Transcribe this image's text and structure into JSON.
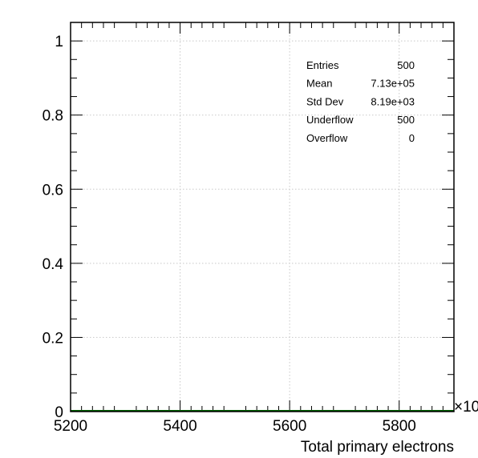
{
  "chart_data": {
    "type": "histogram",
    "xlabel": "Total primary electrons",
    "ylabel": "",
    "x_ticks": [
      "5200",
      "5400",
      "5600",
      "5800"
    ],
    "x_exponent_label": "×10",
    "xlim": [
      5200,
      5900
    ],
    "y_ticks": [
      "0",
      "0.2",
      "0.4",
      "0.6",
      "0.8",
      "1"
    ],
    "ylim": [
      0,
      1.05
    ],
    "grid": true,
    "series": [
      {
        "values": [],
        "color": "#006400"
      }
    ],
    "stats_box": {
      "rows": [
        {
          "label": "Entries",
          "value": "500"
        },
        {
          "label": "Mean",
          "value": "7.13e+05"
        },
        {
          "label": "Std Dev",
          "value": "8.19e+03"
        },
        {
          "label": "Underflow",
          "value": "500"
        },
        {
          "label": "Overflow",
          "value": "0"
        }
      ]
    }
  }
}
